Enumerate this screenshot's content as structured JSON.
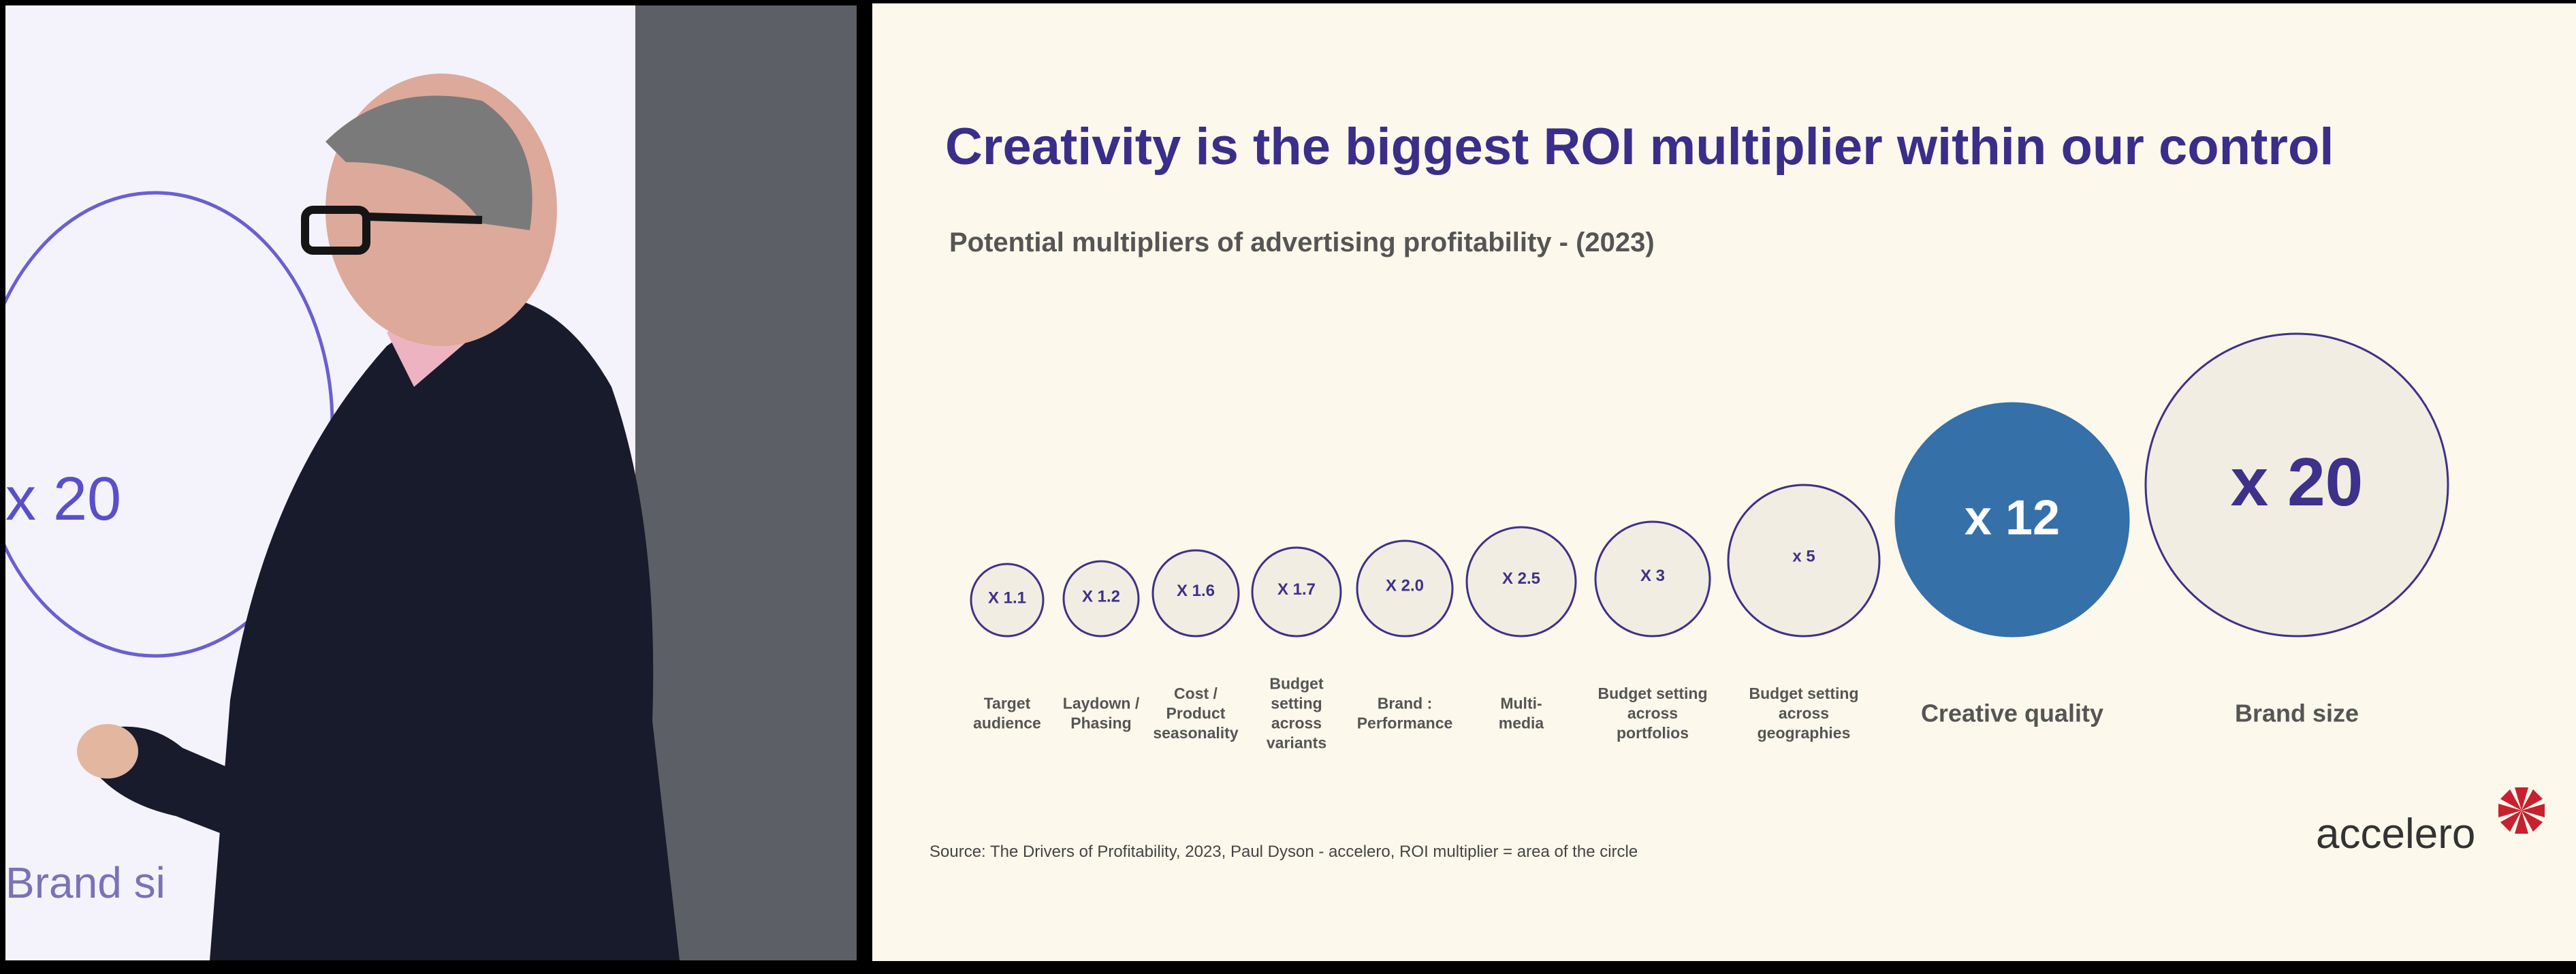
{
  "video": {
    "screen_value": "x 20",
    "screen_label": "Brand si"
  },
  "slide": {
    "title": "Creativity is the biggest ROI multiplier within our control",
    "subtitle": "Potential multipliers of advertising profitability - (2023)",
    "source": "Source: The Drivers of Profitability, 2023, Paul Dyson - accelero, ROI multiplier = area of the circle",
    "logo_text": "accelero",
    "colors": {
      "title": "#3a2e8a",
      "circle_fill": "#f2ede2",
      "circle_stroke": "#3d318a",
      "highlight": "#3570a8",
      "logo_star": "#c8202e"
    }
  },
  "chart_data": {
    "type": "scatter",
    "encoding": "bubble area = ROI multiplier",
    "title": "Potential multipliers of advertising profitability - (2023)",
    "points": [
      {
        "label": [
          "Target",
          "audience"
        ],
        "value": 1.1,
        "text": "X 1.1"
      },
      {
        "label": [
          "Laydown /",
          "Phasing"
        ],
        "value": 1.2,
        "text": "X 1.2"
      },
      {
        "label": [
          "Cost /",
          "Product",
          "seasonality"
        ],
        "value": 1.6,
        "text": "X 1.6"
      },
      {
        "label": [
          "Budget",
          "setting",
          "across",
          "variants"
        ],
        "value": 1.7,
        "text": "X 1.7"
      },
      {
        "label": [
          "Brand :",
          "Performance"
        ],
        "value": 2.0,
        "text": "X 2.0"
      },
      {
        "label": [
          "Multi-",
          "media"
        ],
        "value": 2.5,
        "text": "X 2.5"
      },
      {
        "label": [
          "Budget setting",
          "across",
          "portfolios"
        ],
        "value": 3,
        "text": "X 3"
      },
      {
        "label": [
          "Budget setting",
          "across",
          "geographies"
        ],
        "value": 5,
        "text": "x 5"
      },
      {
        "label": [
          "Creative quality"
        ],
        "value": 12,
        "text": "x 12",
        "highlight": true
      },
      {
        "label": [
          "Brand size"
        ],
        "value": 20,
        "text": "x 20"
      }
    ]
  }
}
